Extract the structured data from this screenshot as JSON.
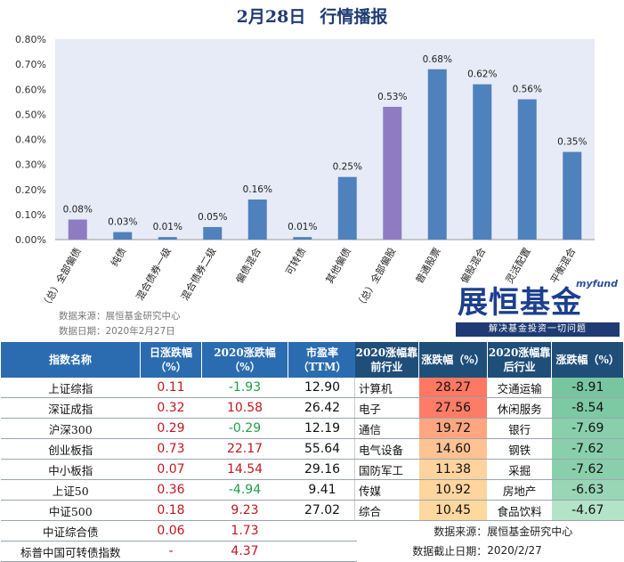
{
  "title": {
    "date": "2月28日",
    "text": "行情播报"
  },
  "chart_data": {
    "type": "bar",
    "categories": [
      "（总）全部偏债",
      "纯债",
      "混合债券一级",
      "混合债券二级",
      "偏债混合",
      "可转债",
      "其他偏债",
      "（总）全部偏股",
      "普通股票",
      "偏股混合",
      "灵活配置",
      "平衡混合"
    ],
    "values": [
      0.08,
      0.03,
      0.01,
      0.05,
      0.16,
      0.01,
      0.25,
      0.53,
      0.68,
      0.62,
      0.56,
      0.35
    ],
    "value_labels": [
      "0.08%",
      "0.03%",
      "0.01%",
      "0.05%",
      "0.16%",
      "0.01%",
      "0.25%",
      "0.53%",
      "0.68%",
      "0.62%",
      "0.56%",
      "0.35%"
    ],
    "highlight": [
      true,
      false,
      false,
      false,
      false,
      false,
      false,
      true,
      false,
      false,
      false,
      false
    ],
    "ylim": [
      0,
      0.8
    ],
    "yticks": [
      "0.00%",
      "0.10%",
      "0.20%",
      "0.30%",
      "0.40%",
      "0.50%",
      "0.60%",
      "0.70%",
      "0.80%"
    ],
    "grid": false,
    "colors": {
      "bar": "#4f81bd",
      "highlight": "#8e7cc3",
      "plot_bg": "#e7ebf7"
    }
  },
  "source": {
    "line1": "数据来源：展恒基金研究中心",
    "line2": "数据日期：2020年2月27日"
  },
  "logo": {
    "en": "myfund",
    "cn": "展恒基金",
    "slogan": "解决基金投资一切问题"
  },
  "left_table": {
    "headers": [
      "指数名称",
      "日涨跌幅（%）",
      "2020涨跌幅（%）",
      "市盈率（TTM）"
    ],
    "rows": [
      {
        "name": "上证综指",
        "day": "0.11",
        "ytd": "-1.93",
        "pe": "12.90"
      },
      {
        "name": "深证成指",
        "day": "0.32",
        "ytd": "10.58",
        "pe": "26.42"
      },
      {
        "name": "沪深300",
        "day": "0.29",
        "ytd": "-0.29",
        "pe": "12.19"
      },
      {
        "name": "创业板指",
        "day": "0.73",
        "ytd": "22.17",
        "pe": "55.64"
      },
      {
        "name": "中小板指",
        "day": "0.07",
        "ytd": "14.54",
        "pe": "29.16"
      },
      {
        "name": "上证50",
        "day": "0.36",
        "ytd": "-4.94",
        "pe": "9.41"
      },
      {
        "name": "中证500",
        "day": "0.18",
        "ytd": "9.23",
        "pe": "27.02"
      },
      {
        "name": "中证综合债",
        "day": "0.06",
        "ytd": "1.73",
        "pe": ""
      },
      {
        "name": "标普中国可转债指数",
        "day": "-",
        "ytd": "4.37",
        "pe": ""
      }
    ]
  },
  "right_table": {
    "headers": [
      "2020涨幅靠前行业",
      "涨跌幅（%）",
      "2020涨幅靠后行业",
      "涨跌幅（%）"
    ],
    "rows": [
      {
        "top": "计算机",
        "top_v": "28.27",
        "bot": "交通运输",
        "bot_v": "-8.91"
      },
      {
        "top": "电子",
        "top_v": "27.56",
        "bot": "休闲服务",
        "bot_v": "-8.54"
      },
      {
        "top": "通信",
        "top_v": "19.72",
        "bot": "银行",
        "bot_v": "-7.69"
      },
      {
        "top": "电气设备",
        "top_v": "14.60",
        "bot": "钢铁",
        "bot_v": "-7.62"
      },
      {
        "top": "国防军工",
        "top_v": "11.38",
        "bot": "采掘",
        "bot_v": "-7.62"
      },
      {
        "top": "传媒",
        "top_v": "10.92",
        "bot": "房地产",
        "bot_v": "-6.63"
      },
      {
        "top": "综合",
        "top_v": "10.45",
        "bot": "食品饮料",
        "bot_v": "-4.67"
      }
    ],
    "footer": {
      "src_label": "数据来源：",
      "src_value": "展恒基金研究中心",
      "date_label": "数据截止日期：",
      "date_value": "2020/2/27"
    }
  }
}
